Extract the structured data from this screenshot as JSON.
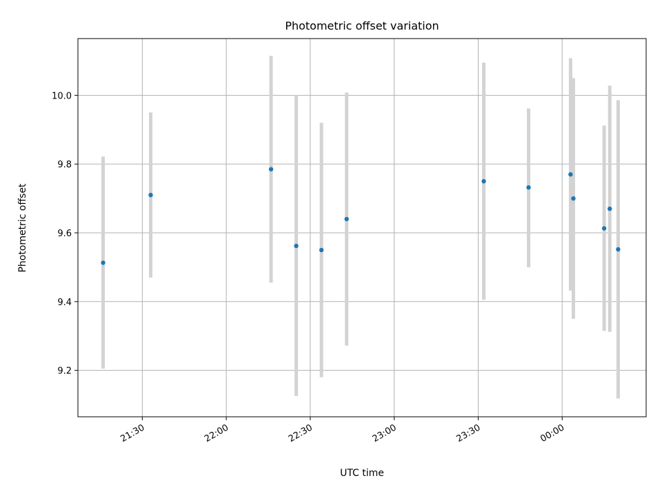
{
  "chart_data": {
    "type": "scatter",
    "title": "Photometric offset variation",
    "xlabel": "UTC time",
    "ylabel": "Photometric offset",
    "x_axis_kind": "time",
    "xlim": [
      "21:07",
      "00:30"
    ],
    "ylim": [
      9.065,
      10.165
    ],
    "x_ticks": [
      "21:30",
      "22:00",
      "22:30",
      "23:00",
      "23:30",
      "00:00"
    ],
    "y_ticks": [
      9.2,
      9.4,
      9.6,
      9.8,
      10.0
    ],
    "y_tick_labels": [
      "9.2",
      "9.4",
      "9.6",
      "9.8",
      "10.0"
    ],
    "grid": true,
    "point_color": "#1f77b4",
    "errorbar_color": "#d3d3d3",
    "points": [
      {
        "x": "21:16",
        "y": 9.513,
        "ylow": 9.205,
        "yhigh": 9.822
      },
      {
        "x": "21:33",
        "y": 9.71,
        "ylow": 9.47,
        "yhigh": 9.95
      },
      {
        "x": "22:16",
        "y": 9.785,
        "ylow": 9.455,
        "yhigh": 10.115
      },
      {
        "x": "22:25",
        "y": 9.562,
        "ylow": 9.125,
        "yhigh": 10.0
      },
      {
        "x": "22:34",
        "y": 9.55,
        "ylow": 9.18,
        "yhigh": 9.92
      },
      {
        "x": "22:43",
        "y": 9.64,
        "ylow": 9.272,
        "yhigh": 10.008
      },
      {
        "x": "23:32",
        "y": 9.75,
        "ylow": 9.405,
        "yhigh": 10.095
      },
      {
        "x": "23:48",
        "y": 9.732,
        "ylow": 9.5,
        "yhigh": 9.962
      },
      {
        "x": "00:03",
        "y": 9.77,
        "ylow": 9.432,
        "yhigh": 10.108
      },
      {
        "x": "00:04",
        "y": 9.7,
        "ylow": 9.35,
        "yhigh": 10.05
      },
      {
        "x": "00:15",
        "y": 9.613,
        "ylow": 9.315,
        "yhigh": 9.912
      },
      {
        "x": "00:17",
        "y": 9.67,
        "ylow": 9.312,
        "yhigh": 10.028
      },
      {
        "x": "00:20",
        "y": 9.552,
        "ylow": 9.118,
        "yhigh": 9.986
      }
    ]
  }
}
